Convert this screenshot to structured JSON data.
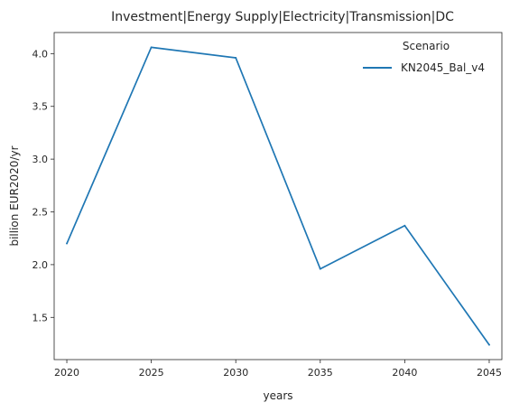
{
  "chart_data": {
    "type": "line",
    "title": "Investment|Energy Supply|Electricity|Transmission|DC",
    "xlabel": "years",
    "ylabel": "billion EUR2020/yr",
    "x": [
      2020,
      2025,
      2030,
      2035,
      2040,
      2045
    ],
    "x_ticks": [
      "2020",
      "2025",
      "2030",
      "2035",
      "2040",
      "2045"
    ],
    "y_ticks": [
      "1.5",
      "2.0",
      "2.5",
      "3.0",
      "3.5",
      "4.0"
    ],
    "xlim": [
      2019.25,
      2045.75
    ],
    "ylim": [
      1.1,
      4.2
    ],
    "grid": false,
    "legend": {
      "title": "Scenario",
      "placement": "top-right"
    },
    "series": [
      {
        "name": "KN2045_Bal_v4",
        "color": "#1f77b4",
        "values": [
          2.2,
          4.06,
          3.96,
          1.96,
          2.37,
          1.24
        ]
      }
    ]
  }
}
